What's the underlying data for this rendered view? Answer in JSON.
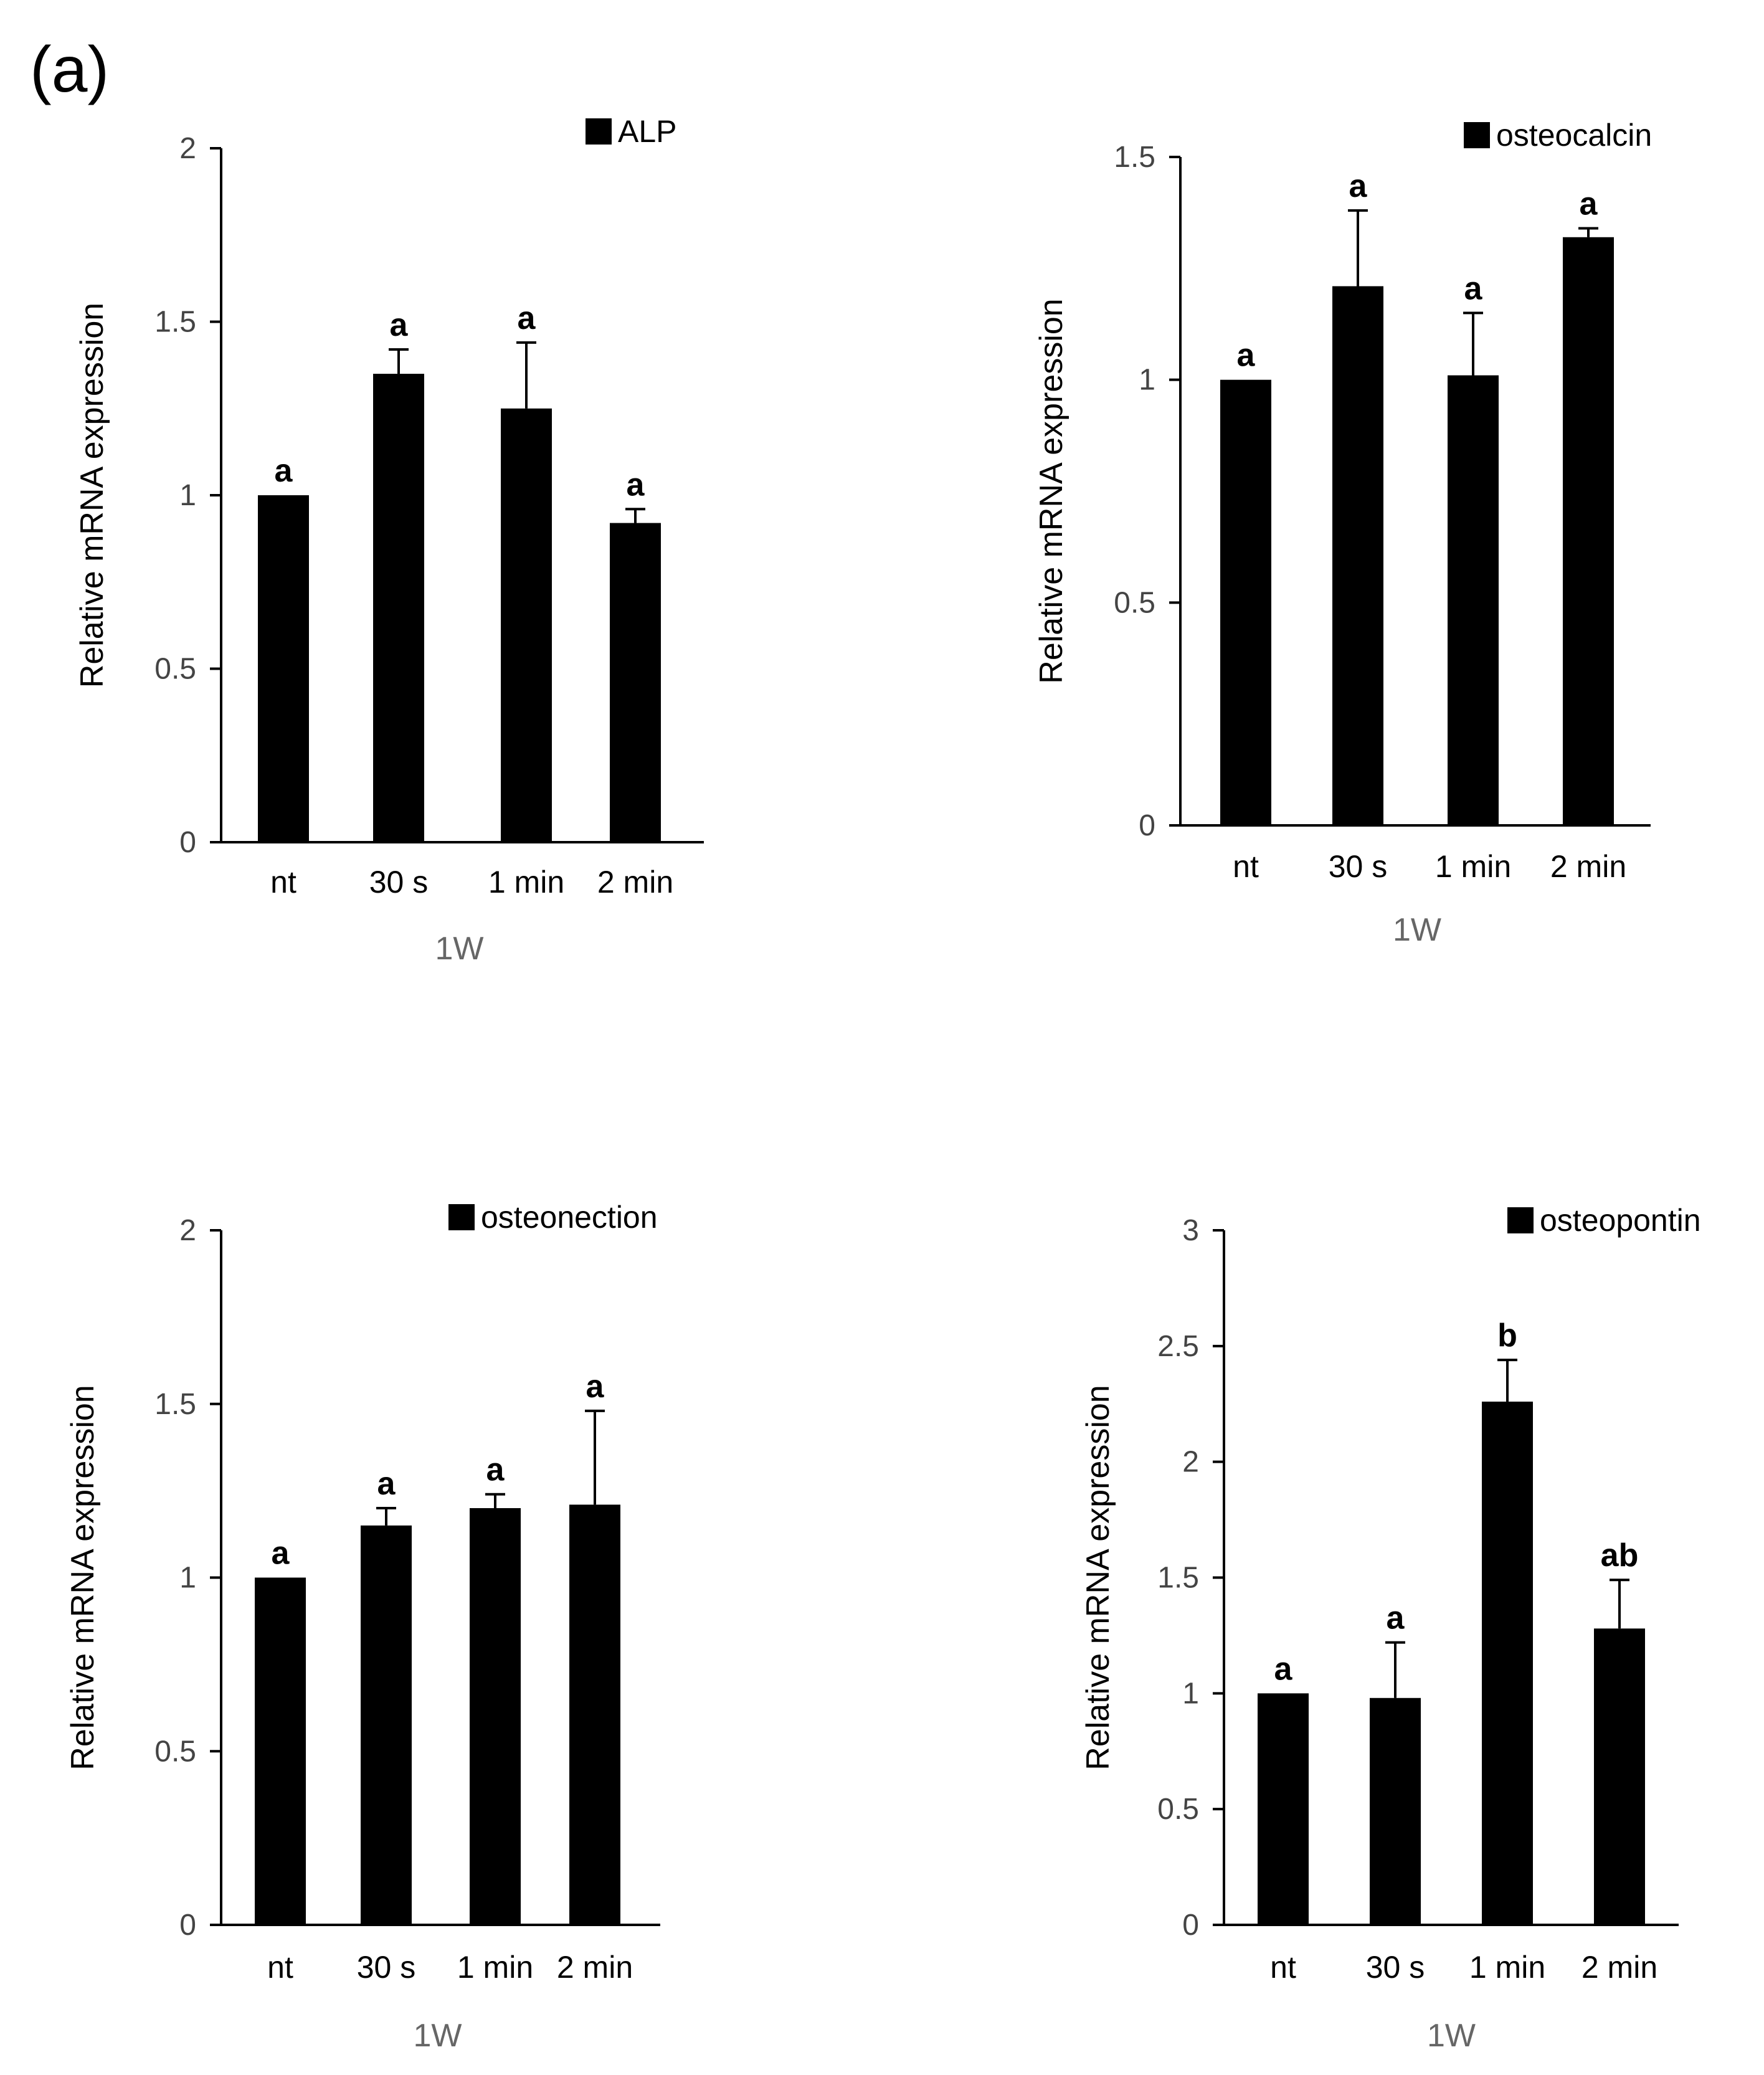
{
  "panel_label": "(a)",
  "colors": {
    "bar": "#000000",
    "axis": "#000000",
    "tick_text": "#444444",
    "group_label": "#666666"
  },
  "chart_data": [
    {
      "type": "bar",
      "title": "",
      "legend": "ALP",
      "legend_position": "top-right",
      "ylabel": "Relative mRNA expression",
      "xlabel": "1W",
      "categories": [
        "nt",
        "30 s",
        "1 min",
        "2 min"
      ],
      "values": [
        1.0,
        1.35,
        1.25,
        0.92
      ],
      "errors": [
        0,
        0.07,
        0.19,
        0.04
      ],
      "sig_labels": [
        "a",
        "a",
        "a",
        "a"
      ],
      "ylim": [
        0,
        2
      ],
      "yticks": [
        0,
        0.5,
        1,
        1.5,
        2
      ],
      "ytick_labels": [
        "0",
        "0.5",
        "1",
        "1.5",
        "2"
      ]
    },
    {
      "type": "bar",
      "title": "",
      "legend": "osteocalcin",
      "legend_position": "top-right",
      "ylabel": "Relative mRNA expression",
      "xlabel": "1W",
      "categories": [
        "nt",
        "30 s",
        "1 min",
        "2 min"
      ],
      "values": [
        1.0,
        1.21,
        1.01,
        1.32
      ],
      "errors": [
        0,
        0.17,
        0.14,
        0.02
      ],
      "sig_labels": [
        "a",
        "a",
        "a",
        "a"
      ],
      "ylim": [
        0,
        1.5
      ],
      "yticks": [
        0,
        0.5,
        1,
        1.5
      ],
      "ytick_labels": [
        "0",
        "0.5",
        "1",
        "1.5"
      ]
    },
    {
      "type": "bar",
      "title": "",
      "legend": "osteonection",
      "legend_position": "top-right",
      "ylabel": "Relative mRNA expression",
      "xlabel": "1W",
      "categories": [
        "nt",
        "30 s",
        "1 min",
        "2 min"
      ],
      "values": [
        1.0,
        1.15,
        1.2,
        1.21
      ],
      "errors": [
        0,
        0.05,
        0.04,
        0.27
      ],
      "sig_labels": [
        "a",
        "a",
        "a",
        "a"
      ],
      "ylim": [
        0,
        2
      ],
      "yticks": [
        0,
        0.5,
        1,
        1.5,
        2
      ],
      "ytick_labels": [
        "0",
        "0.5",
        "1",
        "1.5",
        "2"
      ]
    },
    {
      "type": "bar",
      "title": "",
      "legend": "osteopontin",
      "legend_position": "top-right",
      "ylabel": "Relative mRNA expression",
      "xlabel": "1W",
      "categories": [
        "nt",
        "30 s",
        "1 min",
        "2 min"
      ],
      "values": [
        1.0,
        0.98,
        2.26,
        1.28
      ],
      "errors": [
        0,
        0.24,
        0.18,
        0.21
      ],
      "sig_labels": [
        "a",
        "a",
        "b",
        "ab"
      ],
      "ylim": [
        0,
        3
      ],
      "yticks": [
        0,
        0.5,
        1,
        1.5,
        2,
        2.5,
        3
      ],
      "ytick_labels": [
        "0",
        "0.5",
        "1",
        "1.5",
        "2",
        "2.5",
        "3"
      ]
    }
  ]
}
